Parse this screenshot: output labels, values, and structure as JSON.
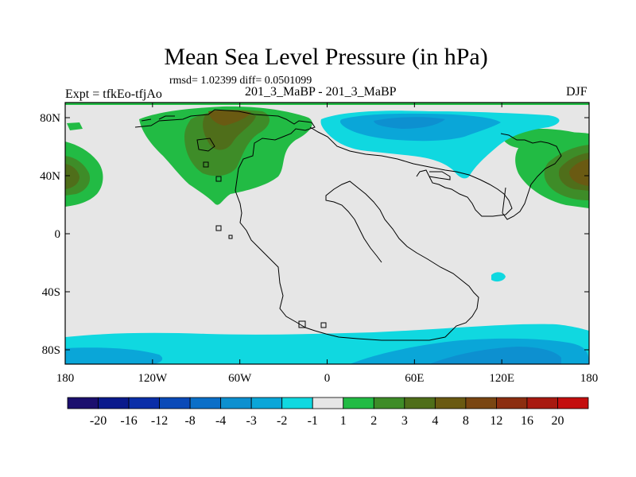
{
  "title": "Mean Sea Level Pressure (in hPa)",
  "stats": "rmsd= 1.02399 diff= 0.0501099",
  "left_label": "Expt = tfkEo-tfjAo",
  "center_label": "201_3_MaBP - 201_3_MaBP",
  "right_label": "DJF",
  "map": {
    "lon_ticks": [
      "180",
      "120W",
      "60W",
      "0",
      "60E",
      "120E",
      "180"
    ],
    "lat_ticks": [
      "80N",
      "40N",
      "0",
      "40S",
      "80S"
    ]
  },
  "colorbar": {
    "labels": [
      "-20",
      "-16",
      "-12",
      "-8",
      "-4",
      "-3",
      "-2",
      "-1",
      "1",
      "2",
      "3",
      "4",
      "8",
      "12",
      "16",
      "20"
    ],
    "colors": [
      "#1b0f6e",
      "#0a1a8c",
      "#0a2ea8",
      "#0a4ab8",
      "#0b6fc8",
      "#0d90d0",
      "#0aa6d8",
      "#10d8e0",
      "#e6e6e6",
      "#22bb44",
      "#3e8c28",
      "#4f6e1a",
      "#6a5a12",
      "#7a4612",
      "#8c2e10",
      "#a81a10",
      "#c40e0e"
    ]
  }
}
